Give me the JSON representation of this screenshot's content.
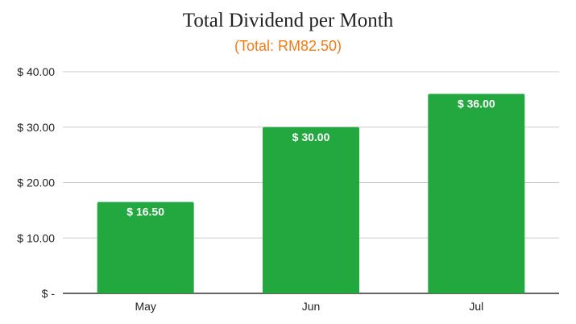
{
  "chart_data": {
    "type": "bar",
    "title": "Total Dividend per Month",
    "subtitle": "(Total: RM82.50)",
    "categories": [
      "May",
      "Jun",
      "Jul"
    ],
    "values": [
      16.5,
      30.0,
      36.0
    ],
    "data_labels": [
      "$ 16.50",
      "$ 30.00",
      "$ 36.00"
    ],
    "y_ticks": [
      {
        "value": 0,
        "label": "$ -"
      },
      {
        "value": 10,
        "label": "$ 10.00"
      },
      {
        "value": 20,
        "label": "$ 20.00"
      },
      {
        "value": 30,
        "label": "$ 30.00"
      },
      {
        "value": 40,
        "label": "$ 40.00"
      }
    ],
    "ylim": [
      0,
      40
    ],
    "xlabel": "",
    "ylabel": "",
    "grid": true,
    "legend": "none"
  },
  "colors": {
    "bar": "#22a83f",
    "subtitle": "#f07c14",
    "grid": "#cccccc",
    "axis": "#333333"
  }
}
